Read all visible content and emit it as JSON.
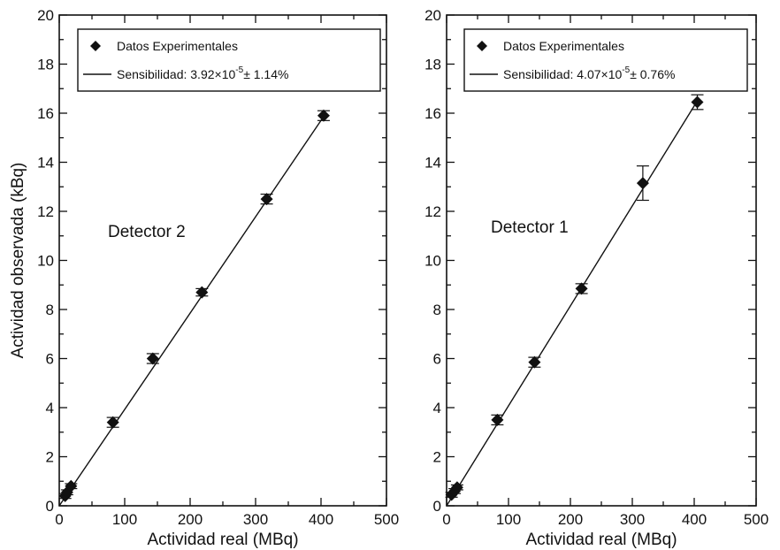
{
  "chart_data": [
    {
      "type": "scatter",
      "annotation": "Detector 2",
      "xlabel": "Actividad real (MBq)",
      "ylabel": "Actividad observada (kBq)",
      "xlim": [
        0,
        500
      ],
      "ylim": [
        0,
        20
      ],
      "xticks": [
        0,
        100,
        200,
        300,
        400,
        500
      ],
      "yticks": [
        0,
        2,
        4,
        6,
        8,
        10,
        12,
        14,
        16,
        18,
        20
      ],
      "grid": false,
      "legend_position": "top",
      "legend": {
        "points": "Datos Experimentales",
        "fit": "Sensibilidad: 3.92×10",
        "fit_exp": "-5",
        "fit_err": "± 1.14%"
      },
      "series": [
        {
          "name": "Datos Experimentales",
          "kind": "points",
          "x": [
            9,
            12,
            18,
            82,
            143,
            218,
            317,
            404
          ],
          "y": [
            0.4,
            0.55,
            0.8,
            3.4,
            6.0,
            8.7,
            12.5,
            15.9
          ],
          "yerr": [
            0.1,
            0.1,
            0.1,
            0.2,
            0.2,
            0.15,
            0.2,
            0.2
          ]
        },
        {
          "name": "Sensibilidad: 3.92×10⁻⁵ ± 1.14%",
          "kind": "line",
          "x": [
            0,
            405
          ],
          "y": [
            0,
            15.9
          ]
        }
      ]
    },
    {
      "type": "scatter",
      "annotation": "Detector 1",
      "xlabel": "Actividad real (MBq)",
      "xlim": [
        0,
        500
      ],
      "ylim": [
        0,
        20
      ],
      "xticks": [
        0,
        100,
        200,
        300,
        400,
        500
      ],
      "yticks": [
        0,
        2,
        4,
        6,
        8,
        10,
        12,
        14,
        16,
        18,
        20
      ],
      "grid": false,
      "legend_position": "top",
      "legend": {
        "points": "Datos Experimentales",
        "fit": "Sensibilidad: 4.07×10",
        "fit_exp": "-5",
        "fit_err": "± 0.76%"
      },
      "series": [
        {
          "name": "Datos Experimentales",
          "kind": "points",
          "x": [
            8,
            13,
            17,
            82,
            142,
            218,
            317,
            405
          ],
          "y": [
            0.45,
            0.6,
            0.75,
            3.5,
            5.85,
            8.85,
            13.15,
            16.45
          ],
          "yerr": [
            0.1,
            0.1,
            0.1,
            0.2,
            0.2,
            0.2,
            0.7,
            0.3
          ]
        },
        {
          "name": "Sensibilidad: 4.07×10⁻⁵ ± 0.76%",
          "kind": "line",
          "x": [
            0,
            405
          ],
          "y": [
            0,
            16.5
          ]
        }
      ]
    }
  ]
}
